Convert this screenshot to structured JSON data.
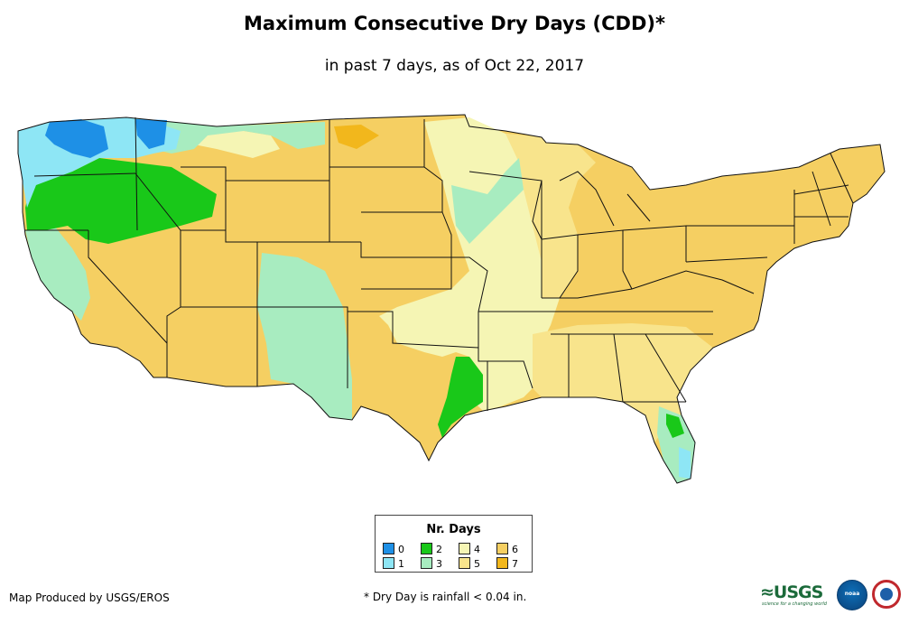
{
  "title": "Maximum Consecutive Dry Days (CDD)*",
  "subtitle": "in past 7 days, as of Oct 22, 2017",
  "legend": {
    "title": "Nr. Days",
    "items": [
      {
        "label": "0",
        "color": "#1e90e6"
      },
      {
        "label": "1",
        "color": "#8ee6f5"
      },
      {
        "label": "2",
        "color": "#19c819"
      },
      {
        "label": "3",
        "color": "#a8ecc0"
      },
      {
        "label": "4",
        "color": "#f5f5b4"
      },
      {
        "label": "5",
        "color": "#f8e48c"
      },
      {
        "label": "6",
        "color": "#f5cf62"
      },
      {
        "label": "7",
        "color": "#f2b71c"
      }
    ]
  },
  "colors": {
    "border": "#111111",
    "background": "#ffffff"
  },
  "credit": "Map Produced by USGS/EROS",
  "footnote": "* Dry Day is rainfall < 0.04 in.",
  "logos": {
    "usgs": "≈USGS",
    "usgs_tagline": "science for a changing world",
    "noaa": "noaa"
  }
}
